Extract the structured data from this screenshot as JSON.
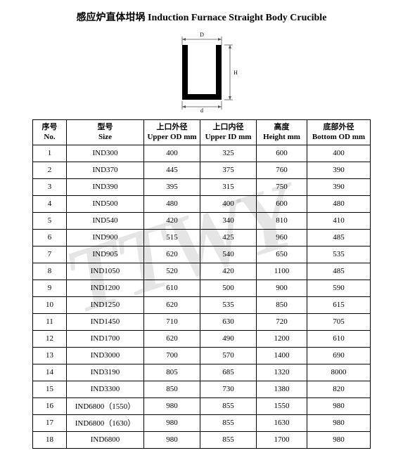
{
  "title": "感应炉直体坩埚 Induction Furnace Straight Body Crucible",
  "watermark": "TTWY",
  "diagram": {
    "top_label": "D",
    "right_label": "H",
    "bottom_label": "d",
    "stroke_color": "#000000",
    "dim_color": "#555555"
  },
  "table": {
    "columns": [
      {
        "cn": "序号",
        "en": "No."
      },
      {
        "cn": "型号",
        "en": "Size"
      },
      {
        "cn": "上口外径",
        "en": "Upper OD mm"
      },
      {
        "cn": "上口内径",
        "en": "Upper ID mm"
      },
      {
        "cn": "高度",
        "en": "Height mm"
      },
      {
        "cn": "底部外径",
        "en": "Bottom OD mm"
      }
    ],
    "rows": [
      [
        "1",
        "IND300",
        "400",
        "325",
        "600",
        "400"
      ],
      [
        "2",
        "IND370",
        "445",
        "375",
        "760",
        "390"
      ],
      [
        "3",
        "IND390",
        "395",
        "315",
        "750",
        "390"
      ],
      [
        "4",
        "IND500",
        "480",
        "400",
        "600",
        "480"
      ],
      [
        "5",
        "IND540",
        "420",
        "340",
        "810",
        "410"
      ],
      [
        "6",
        "IND900",
        "515",
        "425",
        "960",
        "485"
      ],
      [
        "7",
        "IND905",
        "620",
        "540",
        "650",
        "535"
      ],
      [
        "8",
        "IND1050",
        "520",
        "420",
        "1100",
        "485"
      ],
      [
        "9",
        "IND1200",
        "610",
        "500",
        "900",
        "590"
      ],
      [
        "10",
        "IND1250",
        "620",
        "535",
        "850",
        "615"
      ],
      [
        "11",
        "IND1450",
        "710",
        "630",
        "720",
        "705"
      ],
      [
        "12",
        "IND1700",
        "620",
        "490",
        "1200",
        "610"
      ],
      [
        "13",
        "IND3000",
        "700",
        "570",
        "1400",
        "690"
      ],
      [
        "14",
        "IND3190",
        "805",
        "685",
        "1320",
        "8000"
      ],
      [
        "15",
        "IND3300",
        "850",
        "730",
        "1380",
        "820"
      ],
      [
        "16",
        "IND6800（1550）",
        "980",
        "855",
        "1550",
        "980"
      ],
      [
        "17",
        "IND6800（1630）",
        "980",
        "855",
        "1630",
        "980"
      ],
      [
        "18",
        "IND6800",
        "980",
        "855",
        "1700",
        "980"
      ]
    ]
  }
}
